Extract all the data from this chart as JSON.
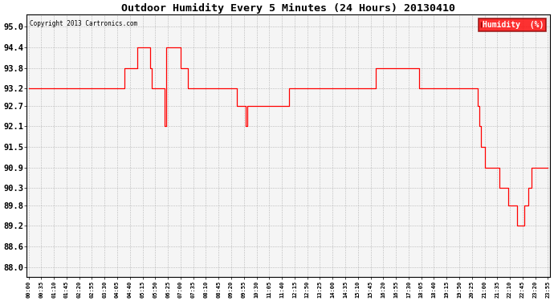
{
  "title": "Outdoor Humidity Every 5 Minutes (24 Hours) 20130410",
  "copyright_text": "Copyright 2013 Cartronics.com",
  "legend_label": "Humidity  (%)",
  "line_color": "red",
  "background_color": "#f5f5f5",
  "grid_color": "#aaaaaa",
  "yticks": [
    88.0,
    88.6,
    89.2,
    89.8,
    90.3,
    90.9,
    91.5,
    92.1,
    92.7,
    93.2,
    93.8,
    94.4,
    95.0
  ],
  "ylim": [
    87.7,
    95.35
  ],
  "humidity_values": [
    93.2,
    93.2,
    93.2,
    93.2,
    93.2,
    93.2,
    93.2,
    93.2,
    93.2,
    93.2,
    93.2,
    93.2,
    93.2,
    93.2,
    93.2,
    93.2,
    93.2,
    93.2,
    93.2,
    93.2,
    93.2,
    93.2,
    93.2,
    93.2,
    93.2,
    93.2,
    93.2,
    93.2,
    93.2,
    93.2,
    93.2,
    93.2,
    93.2,
    93.2,
    93.2,
    93.2,
    93.2,
    93.2,
    93.2,
    93.2,
    93.2,
    93.2,
    93.2,
    93.2,
    93.2,
    93.2,
    93.2,
    93.2,
    93.2,
    93.2,
    93.2,
    93.2,
    93.2,
    93.8,
    93.8,
    93.8,
    93.8,
    93.8,
    93.8,
    93.8,
    94.4,
    94.4,
    94.4,
    94.4,
    94.4,
    94.4,
    94.4,
    93.8,
    93.2,
    93.2,
    93.2,
    93.2,
    93.2,
    93.2,
    93.2,
    92.1,
    94.4,
    94.4,
    94.4,
    94.4,
    94.4,
    94.4,
    94.4,
    94.4,
    93.8,
    93.8,
    93.8,
    93.8,
    93.2,
    93.2,
    93.2,
    93.2,
    93.2,
    93.2,
    93.2,
    93.2,
    93.2,
    93.2,
    93.2,
    93.2,
    93.2,
    93.2,
    93.2,
    93.2,
    93.2,
    93.2,
    93.2,
    93.2,
    93.2,
    93.2,
    93.2,
    93.2,
    93.2,
    93.2,
    93.2,
    92.7,
    92.7,
    92.7,
    92.7,
    92.7,
    92.1,
    92.7,
    92.7,
    92.7,
    92.7,
    92.7,
    92.7,
    92.7,
    92.7,
    92.7,
    92.7,
    92.7,
    92.7,
    92.7,
    92.7,
    92.7,
    92.7,
    92.7,
    92.7,
    92.7,
    92.7,
    92.7,
    92.7,
    92.7,
    93.2,
    93.2,
    93.2,
    93.2,
    93.2,
    93.2,
    93.2,
    93.2,
    93.2,
    93.2,
    93.2,
    93.2,
    93.2,
    93.2,
    93.2,
    93.2,
    93.2,
    93.2,
    93.2,
    93.2,
    93.2,
    93.2,
    93.2,
    93.2,
    93.2,
    93.2,
    93.2,
    93.2,
    93.2,
    93.2,
    93.2,
    93.2,
    93.2,
    93.2,
    93.2,
    93.2,
    93.2,
    93.2,
    93.2,
    93.2,
    93.2,
    93.2,
    93.2,
    93.2,
    93.2,
    93.2,
    93.2,
    93.2,
    93.8,
    93.8,
    93.8,
    93.8,
    93.8,
    93.8,
    93.8,
    93.8,
    93.8,
    93.8,
    93.8,
    93.8,
    93.8,
    93.8,
    93.8,
    93.8,
    93.8,
    93.8,
    93.8,
    93.8,
    93.8,
    93.8,
    93.8,
    93.8,
    93.2,
    93.2,
    93.2,
    93.2,
    93.2,
    93.2,
    93.2,
    93.2,
    93.2,
    93.2,
    93.2,
    93.2,
    93.2,
    93.2,
    93.2,
    93.2,
    93.2,
    93.2,
    93.2,
    93.2,
    93.2,
    93.2,
    93.2,
    93.2,
    93.2,
    93.2,
    93.2,
    93.2,
    93.2,
    93.2,
    93.2,
    93.2,
    92.7,
    92.1,
    91.5,
    91.5,
    90.9,
    90.9,
    90.9,
    90.9,
    90.9,
    90.9,
    90.9,
    90.9,
    90.3,
    90.3,
    90.3,
    90.3,
    90.3,
    89.8,
    89.8,
    89.8,
    89.8,
    89.8,
    89.2,
    89.2,
    89.2,
    89.2,
    89.8,
    89.8,
    90.3,
    90.3,
    90.9,
    90.9,
    90.9,
    90.9,
    90.9,
    90.9,
    90.9,
    90.9,
    90.9,
    90.9
  ]
}
